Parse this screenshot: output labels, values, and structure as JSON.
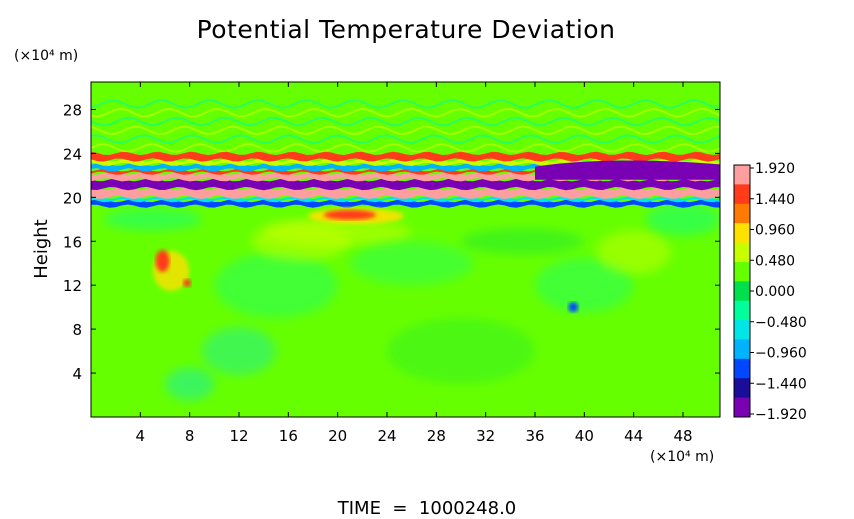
{
  "chart_data": {
    "type": "heatmap",
    "title": "Potential Temperature Deviation",
    "ylabel": "Height",
    "y_unit": "(×10⁴ m)",
    "x_unit": "(×10⁴ m)",
    "time_label": "TIME  =  1000248.0",
    "x_ticks": [
      "4",
      "8",
      "12",
      "16",
      "20",
      "24",
      "28",
      "32",
      "36",
      "40",
      "44",
      "48"
    ],
    "x_tick_values": [
      4,
      8,
      12,
      16,
      20,
      24,
      28,
      32,
      36,
      40,
      44,
      48
    ],
    "y_ticks": [
      "4",
      "8",
      "12",
      "16",
      "20",
      "24",
      "28"
    ],
    "y_tick_values": [
      4,
      8,
      12,
      16,
      20,
      24,
      28
    ],
    "xlim": [
      0,
      51
    ],
    "ylim": [
      0,
      30.5
    ],
    "colorbar": {
      "labels": [
        "1.920",
        "1.440",
        "0.960",
        "0.480",
        "0.000",
        "−0.480",
        "−0.960",
        "−1.440",
        "−1.920"
      ],
      "range": [
        -1.92,
        1.92
      ],
      "colors": [
        "#ff9e9e",
        "#ff3b1a",
        "#ff7a00",
        "#ffe100",
        "#c8ff00",
        "#66ff00",
        "#00e04c",
        "#00ff9a",
        "#00e6e6",
        "#00b3ff",
        "#0047ff",
        "#1a0d99",
        "#7a00b3"
      ]
    },
    "features": [
      {
        "x": [
          0,
          51
        ],
        "y": [
          19.2,
          24.0
        ],
        "value": "alternating bands −1.92 … 1.92"
      },
      {
        "x": [
          18,
          26
        ],
        "y": [
          17.5,
          19.0
        ],
        "value": "≈1.4"
      },
      {
        "x": [
          4.5,
          8.5
        ],
        "y": [
          11.5,
          15.5
        ],
        "value": "≈1.4"
      },
      {
        "x": [
          38.8,
          39.5
        ],
        "y": [
          9.5,
          10.5
        ],
        "value": "≈−1.4"
      }
    ]
  },
  "colors": {
    "background": "#66ff00",
    "frame": "#000000"
  }
}
